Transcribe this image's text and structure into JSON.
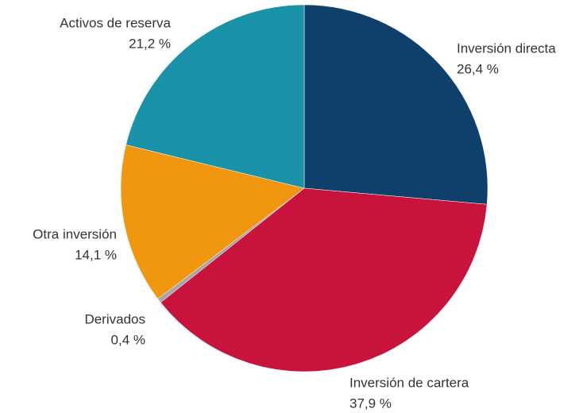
{
  "chart_data": {
    "type": "pie",
    "categories": [
      "Inversión directa",
      "Inversión de cartera",
      "Derivados",
      "Otra inversión",
      "Activos de reserva"
    ],
    "values": [
      26.4,
      37.9,
      0.4,
      14.1,
      21.2
    ],
    "value_labels": [
      "26,4 %",
      "37,9 %",
      "0,4 %",
      "14,1 %",
      "21,2 %"
    ],
    "colors": [
      "#0f3f6b",
      "#c8143c",
      "#a6a6a6",
      "#f0960f",
      "#1a93a8"
    ]
  }
}
